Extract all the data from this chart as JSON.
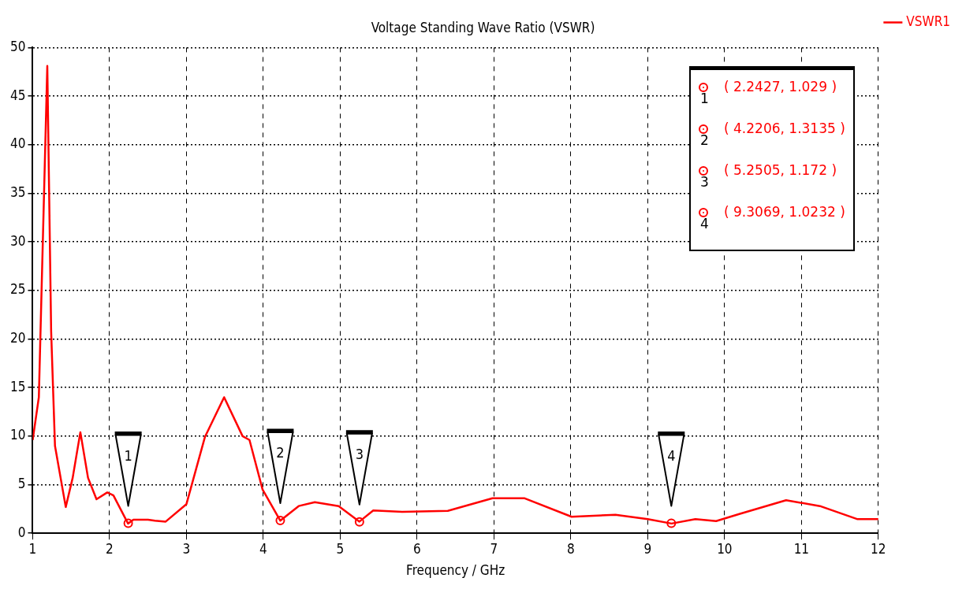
{
  "chart_data": {
    "type": "line",
    "title": "Voltage Standing Wave Ratio (VSWR)",
    "xlabel": "Frequency / GHz",
    "xlim": [
      1,
      12
    ],
    "xticks": [
      1,
      2,
      3,
      4,
      5,
      6,
      7,
      8,
      9,
      10,
      11,
      12
    ],
    "ylim": [
      0,
      50
    ],
    "yticks": [
      0,
      5,
      10,
      15,
      20,
      25,
      30,
      35,
      40,
      45,
      50
    ],
    "grid": true,
    "legend": "top right",
    "line_style": "solid",
    "marker": "none",
    "series": [
      {
        "name": "VSWR1",
        "color": "#ff0000",
        "x": [
          1.0,
          1.08,
          1.19,
          1.24,
          1.29,
          1.43,
          1.52,
          1.62,
          1.72,
          1.83,
          1.97,
          2.05,
          2.24,
          2.31,
          2.5,
          2.59,
          2.73,
          3.0,
          3.24,
          3.49,
          3.73,
          3.82,
          3.99,
          4.22,
          4.46,
          4.67,
          4.98,
          5.25,
          5.43,
          5.81,
          6.4,
          6.98,
          7.4,
          8.01,
          8.58,
          9.0,
          9.31,
          9.62,
          9.89,
          10.2,
          10.8,
          11.24,
          11.73,
          12.0
        ],
        "values": [
          9.6,
          14,
          48.1,
          20.8,
          9.0,
          2.7,
          5.7,
          10.4,
          5.7,
          3.5,
          4.2,
          3.9,
          1.0,
          1.4,
          1.4,
          1.3,
          1.2,
          3.0,
          9.9,
          14.0,
          10.0,
          9.6,
          4.5,
          1.3,
          2.8,
          3.2,
          2.8,
          1.2,
          2.35,
          2.2,
          2.3,
          3.6,
          3.6,
          1.7,
          1.9,
          1.45,
          1.0,
          1.45,
          1.25,
          2.0,
          3.4,
          2.8,
          1.45,
          1.45
        ]
      },
      {
        "color": "#ff0000",
        "type": "scatter",
        "marker": "circle",
        "x": [
          2.2427,
          4.2206,
          5.2505,
          9.3069
        ],
        "values": [
          1.029,
          1.3135,
          1.172,
          1.0232
        ]
      }
    ],
    "annotations": [
      "1",
      "2",
      "3",
      "4",
      "( 2.2427, 1.029 )",
      "( 4.2206, 1.3135 )",
      "( 5.2505, 1.172 )",
      "( 9.3069, 1.0232 )"
    ]
  }
}
